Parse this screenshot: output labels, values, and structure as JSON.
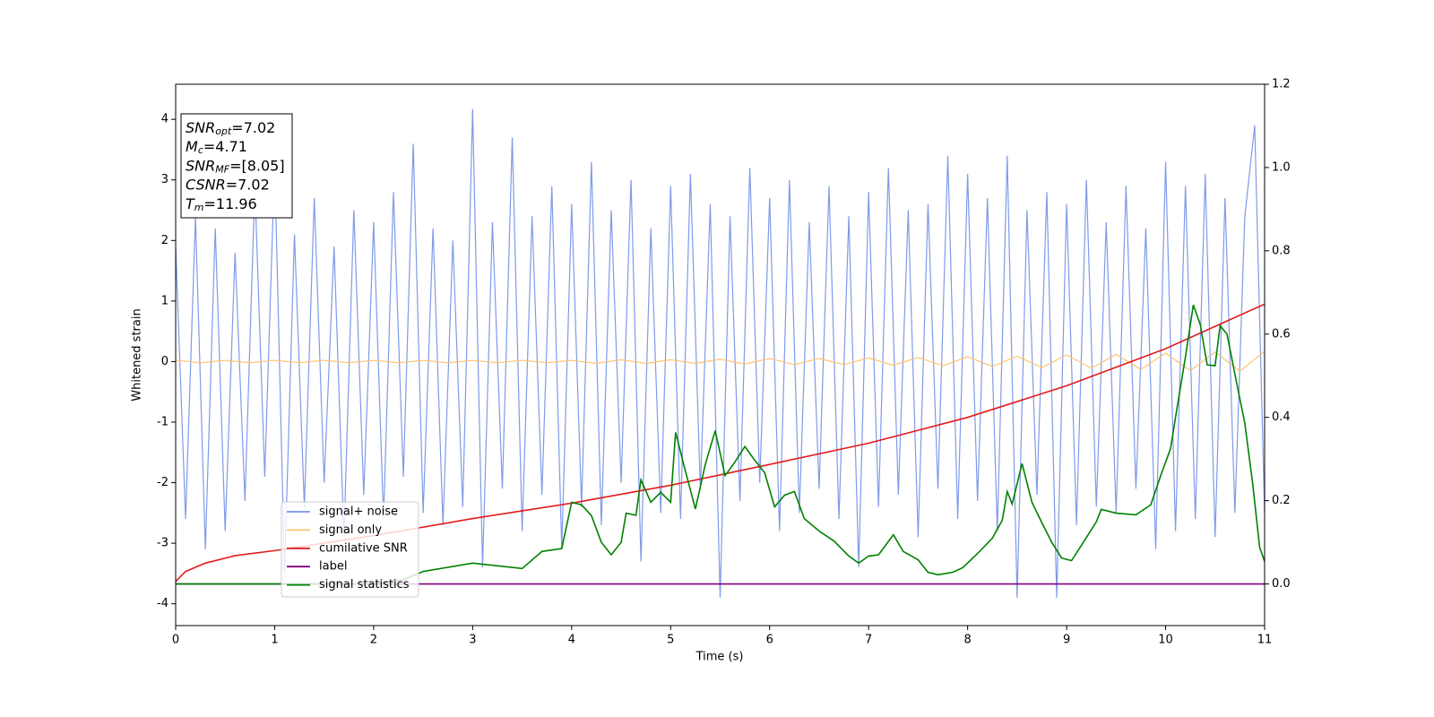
{
  "chart_data": {
    "type": "line",
    "xlabel": "Time (s)",
    "ylabel": "Whitened strain",
    "xlim": [
      0,
      11
    ],
    "xticks": [
      0,
      1,
      2,
      3,
      4,
      5,
      6,
      7,
      8,
      9,
      10,
      11
    ],
    "ylim": [
      -4.36,
      4.58
    ],
    "yticks": [
      -4,
      -3,
      -2,
      -1,
      0,
      1,
      2,
      3,
      4
    ],
    "y2lim": [
      -0.1,
      1.2
    ],
    "y2ticks": [
      {
        "value": 0,
        "label": "0.0"
      },
      {
        "value": 0.2,
        "label": "0.2"
      },
      {
        "value": 0.4,
        "label": "0.4"
      },
      {
        "value": 0.6,
        "label": "0.6"
      },
      {
        "value": 0.8,
        "label": "0.8"
      },
      {
        "value": 1.0,
        "label": "1.0"
      },
      {
        "value": 1.2,
        "label": "1.2"
      }
    ],
    "grid": false,
    "annotations": [
      {
        "italic": "SNR",
        "sub": "opt",
        "text": "=7.02"
      },
      {
        "italic": "M",
        "sub": "c",
        "text": "=4.71"
      },
      {
        "italic": "SNR",
        "sub": "MF",
        "text": "=[8.05]"
      },
      {
        "italic": "CSNR",
        "text": "=7.02"
      },
      {
        "italic": "T",
        "sub": "m",
        "text": "=11.96"
      }
    ],
    "series": [
      {
        "name": "signal+ noise",
        "color": "#7895e8",
        "x": [
          0,
          0.1,
          0.2,
          0.3,
          0.4,
          0.5,
          0.6,
          0.7,
          0.8,
          0.9,
          1,
          1.1,
          1.2,
          1.3,
          1.4,
          1.5,
          1.6,
          1.7,
          1.8,
          1.9,
          2,
          2.1,
          2.2,
          2.3,
          2.4,
          2.5,
          2.6,
          2.7,
          2.8,
          2.9,
          3,
          3.1,
          3.2,
          3.3,
          3.4,
          3.5,
          3.6,
          3.7,
          3.8,
          3.9,
          4,
          4.1,
          4.2,
          4.3,
          4.4,
          4.5,
          4.6,
          4.7,
          4.8,
          4.9,
          5,
          5.1,
          5.2,
          5.3,
          5.4,
          5.5,
          5.6,
          5.7,
          5.8,
          5.9,
          6,
          6.1,
          6.2,
          6.3,
          6.4,
          6.5,
          6.6,
          6.7,
          6.8,
          6.9,
          7,
          7.1,
          7.2,
          7.3,
          7.4,
          7.5,
          7.6,
          7.7,
          7.8,
          7.9,
          8,
          8.1,
          8.2,
          8.3,
          8.4,
          8.5,
          8.6,
          8.7,
          8.8,
          8.9,
          9,
          9.1,
          9.2,
          9.3,
          9.4,
          9.5,
          9.6,
          9.7,
          9.8,
          9.9,
          10,
          10.1,
          10.2,
          10.3,
          10.4,
          10.5,
          10.6,
          10.7,
          10.8,
          10.9,
          11
        ],
        "values": [
          1.9,
          -2.6,
          2.4,
          -3.1,
          2.2,
          -2.8,
          1.8,
          -2.3,
          2.9,
          -1.9,
          3.3,
          -3.5,
          2.1,
          -2.4,
          2.7,
          -2.0,
          1.9,
          -2.9,
          2.5,
          -2.2,
          2.3,
          -2.6,
          2.8,
          -1.9,
          3.6,
          -2.5,
          2.2,
          -2.7,
          2.0,
          -2.4,
          4.17,
          -3.4,
          2.3,
          -2.1,
          3.7,
          -2.8,
          2.4,
          -2.2,
          2.9,
          -3.1,
          2.6,
          -2.4,
          3.3,
          -2.7,
          2.5,
          -2.0,
          3.0,
          -3.3,
          2.2,
          -2.5,
          2.9,
          -2.6,
          3.1,
          -2.1,
          2.6,
          -3.9,
          2.4,
          -2.3,
          3.2,
          -2.0,
          2.7,
          -2.8,
          3.0,
          -2.5,
          2.3,
          -2.1,
          2.9,
          -2.6,
          2.4,
          -3.4,
          2.8,
          -2.4,
          3.2,
          -2.2,
          2.5,
          -2.9,
          2.6,
          -2.1,
          3.4,
          -2.6,
          3.1,
          -2.3,
          2.7,
          -2.8,
          3.4,
          -3.9,
          2.5,
          -2.2,
          2.8,
          -3.9,
          2.6,
          -2.7,
          3.0,
          -2.4,
          2.3,
          -2.5,
          2.9,
          -2.1,
          2.2,
          -3.1,
          3.3,
          -2.8,
          2.9,
          -2.6,
          3.1,
          -2.9,
          2.7,
          -2.5,
          2.4,
          3.9,
          -2.5
        ]
      },
      {
        "name": "signal only",
        "color": "#ffc36e",
        "x": [
          0,
          0.25,
          0.5,
          0.75,
          1,
          1.25,
          1.5,
          1.75,
          2,
          2.25,
          2.5,
          2.75,
          3,
          3.25,
          3.5,
          3.75,
          4,
          4.25,
          4.5,
          4.75,
          5,
          5.25,
          5.5,
          5.75,
          6,
          6.25,
          6.5,
          6.75,
          7,
          7.25,
          7.5,
          7.75,
          8,
          8.25,
          8.5,
          8.75,
          9,
          9.25,
          9.5,
          9.75,
          10,
          10.25,
          10.5,
          10.75,
          11
        ],
        "values": [
          0.02,
          -0.02,
          0.02,
          -0.02,
          0.02,
          -0.02,
          0.02,
          -0.02,
          0.02,
          -0.02,
          0.02,
          -0.02,
          0.02,
          -0.02,
          0.02,
          -0.02,
          0.02,
          -0.03,
          0.03,
          -0.03,
          0.03,
          -0.03,
          0.04,
          -0.04,
          0.05,
          -0.05,
          0.05,
          -0.05,
          0.06,
          -0.06,
          0.07,
          -0.07,
          0.08,
          -0.08,
          0.09,
          -0.1,
          0.11,
          -0.11,
          0.12,
          -0.13,
          0.14,
          -0.15,
          0.16,
          -0.16,
          0.17
        ]
      },
      {
        "name": "cumilative SNR",
        "color": "#e31a1c",
        "axis": "y2",
        "x": [
          0,
          0.1,
          0.3,
          0.6,
          1,
          2,
          3,
          4,
          5,
          6,
          7,
          8,
          9,
          10,
          11
        ],
        "values": [
          0.006,
          0.03,
          0.05,
          0.068,
          0.08,
          0.116,
          0.157,
          0.194,
          0.237,
          0.287,
          0.338,
          0.4,
          0.476,
          0.565,
          0.672
        ]
      },
      {
        "name": "label",
        "color": "#800080",
        "axis": "y2",
        "x": [
          0,
          11
        ],
        "values": [
          0,
          0
        ]
      },
      {
        "name": "signal statistics",
        "color": "#008000",
        "axis": "y2",
        "x": [
          0,
          1,
          2,
          2.3,
          2.5,
          3,
          3.5,
          3.7,
          3.9,
          4,
          4.1,
          4.2,
          4.3,
          4.4,
          4.5,
          4.55,
          4.65,
          4.7,
          4.8,
          4.9,
          5,
          5.05,
          5.15,
          5.25,
          5.35,
          5.45,
          5.55,
          5.65,
          5.75,
          5.85,
          5.95,
          6.05,
          6.15,
          6.25,
          6.35,
          6.5,
          6.65,
          6.8,
          6.9,
          7,
          7.1,
          7.25,
          7.35,
          7.5,
          7.6,
          7.7,
          7.85,
          7.95,
          8.1,
          8.25,
          8.35,
          8.4,
          8.45,
          8.55,
          8.65,
          8.75,
          8.85,
          8.95,
          9.05,
          9.15,
          9.3,
          9.35,
          9.5,
          9.7,
          9.85,
          9.95,
          10.05,
          10.1,
          10.2,
          10.28,
          10.35,
          10.42,
          10.5,
          10.55,
          10.62,
          10.72,
          10.8,
          10.88,
          10.95,
          11
        ],
        "values": [
          0.0,
          0.0,
          0.0,
          0.01,
          0.03,
          0.05,
          0.037,
          0.078,
          0.085,
          0.196,
          0.19,
          0.164,
          0.1,
          0.07,
          0.1,
          0.17,
          0.165,
          0.25,
          0.196,
          0.22,
          0.196,
          0.364,
          0.27,
          0.18,
          0.287,
          0.368,
          0.26,
          0.293,
          0.33,
          0.297,
          0.267,
          0.185,
          0.213,
          0.222,
          0.157,
          0.127,
          0.103,
          0.067,
          0.05,
          0.067,
          0.07,
          0.118,
          0.078,
          0.058,
          0.028,
          0.022,
          0.028,
          0.039,
          0.073,
          0.11,
          0.153,
          0.222,
          0.192,
          0.289,
          0.196,
          0.147,
          0.1,
          0.062,
          0.056,
          0.093,
          0.149,
          0.179,
          0.17,
          0.166,
          0.19,
          0.26,
          0.325,
          0.4,
          0.545,
          0.67,
          0.623,
          0.526,
          0.524,
          0.62,
          0.6,
          0.48,
          0.386,
          0.24,
          0.088,
          0.054
        ]
      }
    ]
  }
}
